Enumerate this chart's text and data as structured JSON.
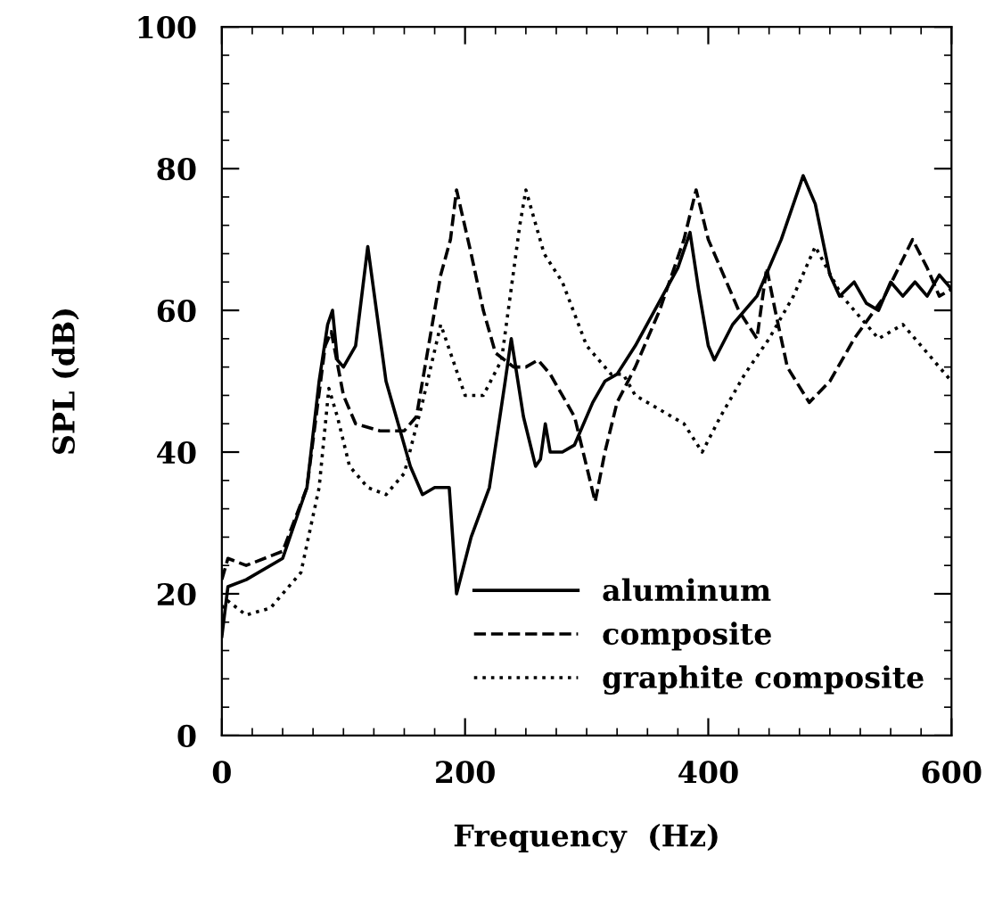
{
  "chart_data": {
    "type": "line",
    "xlabel": "Frequency  (Hz)",
    "ylabel": "SPL (dB)",
    "xlim": [
      0,
      600
    ],
    "ylim": [
      0,
      100
    ],
    "xticks": [
      0,
      200,
      400,
      600
    ],
    "yticks": [
      0,
      20,
      40,
      60,
      80,
      100
    ],
    "grid": false,
    "legend": "bottom right",
    "marker": "none",
    "series": [
      {
        "name": "aluminum",
        "color": "#000000",
        "line_style": "solid",
        "x": [
          0,
          5,
          20,
          50,
          70,
          80,
          87,
          91,
          95,
          100,
          110,
          120,
          135,
          155,
          165,
          175,
          187,
          193,
          205,
          220,
          233,
          238,
          248,
          258,
          262,
          266,
          270,
          280,
          290,
          305,
          315,
          325,
          340,
          375,
          385,
          392,
          400,
          405,
          420,
          440,
          460,
          478,
          488,
          500,
          508,
          520,
          530,
          540,
          550,
          560,
          570,
          580,
          590,
          600
        ],
        "values": [
          14,
          21,
          22,
          25,
          35,
          50,
          58,
          60,
          53,
          52,
          55,
          69,
          50,
          38,
          34,
          35,
          35,
          20,
          28,
          35,
          50,
          56,
          45,
          38,
          39,
          44,
          40,
          40,
          41,
          47,
          50,
          51,
          55,
          66,
          71,
          63,
          55,
          53,
          58,
          62,
          70,
          79,
          75,
          65,
          62,
          64,
          61,
          60,
          64,
          62,
          64,
          62,
          65,
          63
        ]
      },
      {
        "name": "composite",
        "color": "#000000",
        "line_style": "dashed",
        "x": [
          0,
          5,
          20,
          50,
          70,
          85,
          90,
          100,
          110,
          130,
          150,
          160,
          170,
          180,
          188,
          193,
          205,
          215,
          225,
          240,
          250,
          260,
          270,
          290,
          307,
          315,
          325,
          340,
          360,
          380,
          390,
          400,
          425,
          440,
          448,
          455,
          465,
          483,
          500,
          520,
          545,
          568,
          580,
          590,
          600
        ],
        "values": [
          22,
          25,
          24,
          26,
          35,
          55,
          57,
          48,
          44,
          43,
          43,
          45,
          55,
          65,
          70,
          77,
          68,
          60,
          54,
          52,
          52,
          53,
          51,
          45,
          33,
          40,
          47,
          52,
          60,
          70,
          77,
          70,
          60,
          56,
          66,
          60,
          52,
          47,
          50,
          56,
          62,
          70,
          66,
          62,
          63
        ]
      },
      {
        "name": "graphite composite",
        "color": "#000000",
        "line_style": "dotted",
        "x": [
          0,
          5,
          20,
          40,
          65,
          80,
          88,
          95,
          105,
          120,
          135,
          150,
          165,
          180,
          190,
          200,
          215,
          230,
          245,
          250,
          265,
          280,
          300,
          320,
          330,
          340,
          360,
          380,
          395,
          410,
          430,
          450,
          470,
          488,
          510,
          540,
          560,
          580,
          600
        ],
        "values": [
          18,
          19,
          17,
          18,
          23,
          35,
          49,
          45,
          38,
          35,
          34,
          37,
          47,
          58,
          53,
          48,
          48,
          53,
          72,
          77,
          68,
          64,
          55,
          51,
          51,
          48,
          46,
          44,
          40,
          45,
          51,
          56,
          62,
          69,
          62,
          56,
          58,
          54,
          50
        ]
      }
    ]
  }
}
